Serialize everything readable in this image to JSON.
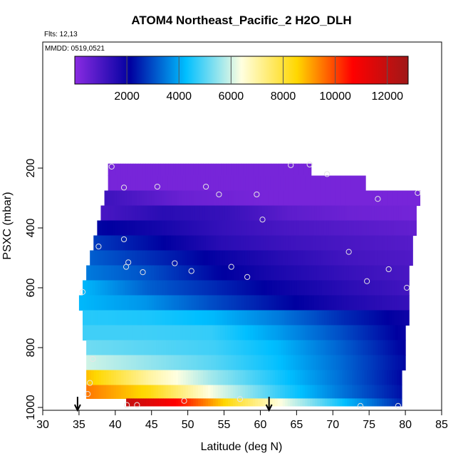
{
  "chart_data": {
    "type": "heatmap",
    "title": "ATOM4 Northeast_Pacific_2 H2O_DLH",
    "flights_label": "Flts: 12,13",
    "date_label": "MMDD: 0519,0521",
    "xlabel": "Latitude (deg N)",
    "ylabel": "PSXC (mbar)",
    "xlim": [
      30,
      85
    ],
    "ylim": [
      1000,
      100
    ],
    "x_ticks": [
      "30",
      "35",
      "40",
      "45",
      "50",
      "55",
      "60",
      "65",
      "70",
      "75",
      "80",
      "85"
    ],
    "y_ticks": [
      "200",
      "400",
      "600",
      "800",
      "1000"
    ],
    "colorbar": {
      "range": [
        0,
        12800
      ],
      "ticks": [
        "2000",
        "4000",
        "6000",
        "8000",
        "10000",
        "12000"
      ],
      "colors": [
        "#8A2BE2",
        "#0000A0",
        "#00BFFF",
        "#FFFFE0",
        "#FFD700",
        "#FF0000",
        "#A01818"
      ]
    },
    "arrows_lat": [
      34.8,
      61.2
    ],
    "grid": false,
    "legend": "colorbar top",
    "layers": [
      {
        "p": 200,
        "lat_min": 39,
        "lat_max": 67,
        "values": [
          300,
          300,
          300
        ]
      },
      {
        "p": 250,
        "lat_min": 39,
        "lat_max": 74.5,
        "values": [
          300,
          300,
          300,
          300
        ]
      },
      {
        "p": 300,
        "lat_min": 38.5,
        "lat_max": 82,
        "values": [
          1200,
          500,
          300,
          300,
          300
        ]
      },
      {
        "p": 350,
        "lat_min": 38,
        "lat_max": 81.5,
        "values": [
          1000,
          1500,
          1300,
          700,
          450,
          350
        ]
      },
      {
        "p": 400,
        "lat_min": 37.5,
        "lat_max": 81.5,
        "values": [
          2200,
          1800,
          1300,
          1000,
          800,
          600
        ]
      },
      {
        "p": 450,
        "lat_min": 37,
        "lat_max": 81,
        "values": [
          2800,
          2200,
          1500,
          1200,
          1000,
          800
        ]
      },
      {
        "p": 500,
        "lat_min": 36.5,
        "lat_max": 81,
        "values": [
          3200,
          2600,
          2000,
          1500,
          1100,
          900
        ]
      },
      {
        "p": 550,
        "lat_min": 36,
        "lat_max": 80.5,
        "values": [
          3500,
          3000,
          2200,
          1700,
          1300,
          1000
        ]
      },
      {
        "p": 600,
        "lat_min": 35.5,
        "lat_max": 80.5,
        "values": [
          4200,
          3200,
          2600,
          2000,
          1500,
          1100
        ]
      },
      {
        "p": 650,
        "lat_min": 35,
        "lat_max": 80.5,
        "values": [
          4200,
          3800,
          3000,
          2300,
          1700,
          1300
        ]
      },
      {
        "p": 700,
        "lat_min": 35.5,
        "lat_max": 80.5,
        "values": [
          4600,
          4500,
          4200,
          3500,
          2600,
          1900
        ]
      },
      {
        "p": 750,
        "lat_min": 35.5,
        "lat_max": 80,
        "values": [
          4800,
          4800,
          4700,
          3900,
          3000,
          2000
        ]
      },
      {
        "p": 800,
        "lat_min": 36,
        "lat_max": 80,
        "values": [
          5200,
          5000,
          4800,
          4200,
          3200,
          2100
        ]
      },
      {
        "p": 850,
        "lat_min": 36,
        "lat_max": 80,
        "values": [
          6000,
          5500,
          5000,
          4300,
          3300,
          2200
        ]
      },
      {
        "p": 900,
        "lat_min": 36,
        "lat_max": 79.5,
        "values": [
          8800,
          7000,
          5600,
          4500,
          3400,
          2200
        ]
      },
      {
        "p": 950,
        "lat_min": 36,
        "lat_max": 79.5,
        "values": [
          9500,
          8400,
          6300,
          4800,
          3500,
          2300
        ]
      },
      {
        "p": 990,
        "lat_min": 41.5,
        "lat_max": 79.5,
        "values": [
          12000,
          10500,
          8000,
          6000,
          4200,
          2500
        ]
      }
    ],
    "points": [
      {
        "lat": 39.5,
        "p": 195
      },
      {
        "lat": 41.2,
        "p": 265
      },
      {
        "lat": 45.8,
        "p": 262
      },
      {
        "lat": 52.5,
        "p": 262
      },
      {
        "lat": 54.3,
        "p": 288
      },
      {
        "lat": 59.5,
        "p": 288
      },
      {
        "lat": 64.2,
        "p": 190
      },
      {
        "lat": 66.8,
        "p": 188
      },
      {
        "lat": 69.2,
        "p": 220
      },
      {
        "lat": 76.2,
        "p": 303
      },
      {
        "lat": 81.7,
        "p": 283
      },
      {
        "lat": 60.3,
        "p": 372
      },
      {
        "lat": 41.2,
        "p": 438
      },
      {
        "lat": 37.7,
        "p": 462
      },
      {
        "lat": 41.8,
        "p": 515
      },
      {
        "lat": 41.5,
        "p": 530
      },
      {
        "lat": 43.8,
        "p": 548
      },
      {
        "lat": 48.2,
        "p": 518
      },
      {
        "lat": 50.5,
        "p": 544
      },
      {
        "lat": 56.0,
        "p": 530
      },
      {
        "lat": 58.2,
        "p": 564
      },
      {
        "lat": 72.2,
        "p": 480
      },
      {
        "lat": 77.7,
        "p": 538
      },
      {
        "lat": 74.7,
        "p": 578
      },
      {
        "lat": 80.2,
        "p": 600
      },
      {
        "lat": 35.5,
        "p": 614
      },
      {
        "lat": 36.9,
        "p": 838
      },
      {
        "lat": 36.5,
        "p": 918
      },
      {
        "lat": 36.2,
        "p": 955
      },
      {
        "lat": 41.6,
        "p": 992
      },
      {
        "lat": 43.0,
        "p": 992
      },
      {
        "lat": 49.5,
        "p": 978
      },
      {
        "lat": 57.2,
        "p": 972
      },
      {
        "lat": 73.8,
        "p": 995
      },
      {
        "lat": 79.0,
        "p": 995
      }
    ]
  }
}
